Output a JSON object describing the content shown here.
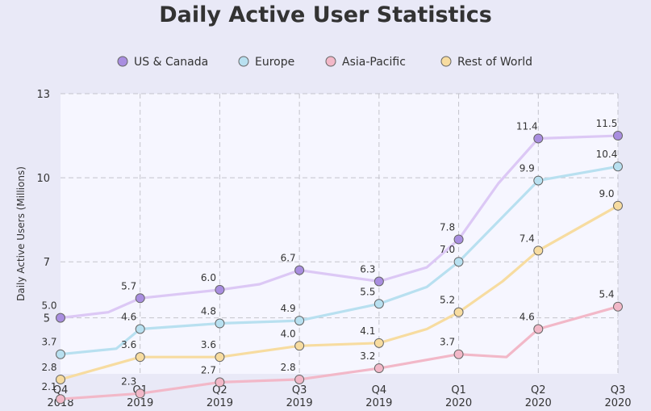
{
  "chart_data": {
    "type": "line",
    "title": "Daily Active User Statistics",
    "xlabel": "",
    "ylabel": "Daily Active Users (Millions)",
    "ylim": [
      3.0,
      13.0
    ],
    "yticks": [
      5,
      7,
      10,
      13
    ],
    "grid": true,
    "legend_position": "top-center",
    "categories": [
      {
        "top": "Q4",
        "bottom": "2018"
      },
      {
        "top": "Q1",
        "bottom": "2019"
      },
      {
        "top": "Q2",
        "bottom": "2019"
      },
      {
        "top": "Q3",
        "bottom": "2019"
      },
      {
        "top": "Q4",
        "bottom": "2019"
      },
      {
        "top": "Q1",
        "bottom": "2020"
      },
      {
        "top": "Q2",
        "bottom": "2020"
      },
      {
        "top": "Q3",
        "bottom": "2020"
      }
    ],
    "series": [
      {
        "name": "US & Canada",
        "color": "#a98ee0",
        "line_color": "#dcc8f5",
        "points": [
          {
            "x": 0,
            "y": 5.0,
            "label": "5.0"
          },
          {
            "x": 0.6,
            "y": 5.2
          },
          {
            "x": 1,
            "y": 5.7,
            "label": "5.7"
          },
          {
            "x": 2,
            "y": 6.0,
            "label": "6.0"
          },
          {
            "x": 2.5,
            "y": 6.2
          },
          {
            "x": 3,
            "y": 6.7,
            "label": "6.7"
          },
          {
            "x": 4,
            "y": 6.3,
            "label": "6.3"
          },
          {
            "x": 4.6,
            "y": 6.8
          },
          {
            "x": 5,
            "y": 7.8,
            "label": "7.8"
          },
          {
            "x": 5.5,
            "y": 9.8
          },
          {
            "x": 6,
            "y": 11.4,
            "label": "11.4"
          },
          {
            "x": 7,
            "y": 11.5,
            "label": "11.5"
          }
        ]
      },
      {
        "name": "Europe",
        "color": "#b8e0f0",
        "line_color": "#b8e0f0",
        "points": [
          {
            "x": 0,
            "y": 3.7,
            "label": "3.7"
          },
          {
            "x": 0.7,
            "y": 3.9
          },
          {
            "x": 1,
            "y": 4.6,
            "label": "4.6"
          },
          {
            "x": 2,
            "y": 4.8,
            "label": "4.8"
          },
          {
            "x": 3,
            "y": 4.9,
            "label": "4.9"
          },
          {
            "x": 4,
            "y": 5.5,
            "label": "5.5"
          },
          {
            "x": 4.6,
            "y": 6.1
          },
          {
            "x": 5,
            "y": 7.0,
            "label": "7.0"
          },
          {
            "x": 6,
            "y": 9.9,
            "label": "9.9"
          },
          {
            "x": 7,
            "y": 10.4,
            "label": "10.4"
          }
        ]
      },
      {
        "name": "Asia-Pacific",
        "color": "#f2b8c8",
        "line_color": "#f2b8c8",
        "points": [
          {
            "x": 0,
            "y": 2.1,
            "label": "2.1"
          },
          {
            "x": 1,
            "y": 2.3,
            "label": "2.3"
          },
          {
            "x": 2,
            "y": 2.7,
            "label": "2.7"
          },
          {
            "x": 3,
            "y": 2.8,
            "label": "2.8"
          },
          {
            "x": 4,
            "y": 3.2,
            "label": "3.2"
          },
          {
            "x": 5,
            "y": 3.7,
            "label": "3.7"
          },
          {
            "x": 5.6,
            "y": 3.6
          },
          {
            "x": 6,
            "y": 4.6,
            "label": "4.6"
          },
          {
            "x": 7,
            "y": 5.4,
            "label": "5.4"
          }
        ]
      },
      {
        "name": "Rest of World",
        "color": "#f7dca0",
        "line_color": "#f7dca0",
        "points": [
          {
            "x": 0,
            "y": 2.8,
            "label": "2.8"
          },
          {
            "x": 1,
            "y": 3.6,
            "label": "3.6"
          },
          {
            "x": 2,
            "y": 3.6,
            "label": "3.6"
          },
          {
            "x": 3,
            "y": 4.0,
            "label": "4.0"
          },
          {
            "x": 4,
            "y": 4.1,
            "label": "4.1"
          },
          {
            "x": 4.6,
            "y": 4.6
          },
          {
            "x": 5,
            "y": 5.2,
            "label": "5.2"
          },
          {
            "x": 5.55,
            "y": 6.3
          },
          {
            "x": 6,
            "y": 7.4,
            "label": "7.4"
          },
          {
            "x": 7,
            "y": 9.0,
            "label": "9.0"
          }
        ]
      }
    ]
  }
}
